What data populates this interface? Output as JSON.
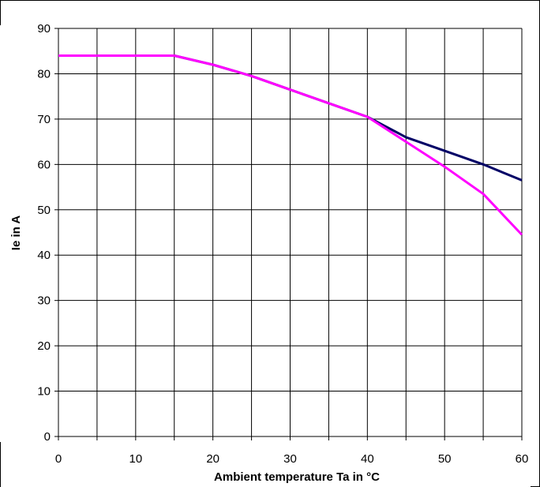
{
  "chart_data": {
    "type": "line",
    "title": "",
    "xlabel": "Ambient temperature Ta in °C",
    "ylabel": "Ie in A",
    "xlim": [
      0,
      60
    ],
    "ylim": [
      0,
      90
    ],
    "x_ticks": [
      0,
      10,
      20,
      30,
      40,
      50,
      60
    ],
    "y_ticks": [
      0,
      10,
      20,
      30,
      40,
      50,
      60,
      70,
      80,
      90
    ],
    "x_gridlines": [
      0,
      5,
      10,
      15,
      20,
      25,
      30,
      35,
      40,
      45,
      50,
      55,
      60
    ],
    "y_gridlines": [
      0,
      10,
      20,
      30,
      40,
      50,
      60,
      70,
      80,
      90
    ],
    "grid": true,
    "legend": "none",
    "series": [
      {
        "color": "#000066",
        "x": [
          0,
          15,
          20,
          25,
          30,
          35,
          40,
          45,
          50,
          55,
          60
        ],
        "y": [
          84,
          84,
          82,
          79.5,
          76.5,
          73.5,
          70.5,
          66,
          63,
          60,
          56.5
        ]
      },
      {
        "color": "#ff00ff",
        "x": [
          0,
          15,
          20,
          25,
          30,
          35,
          40,
          45,
          50,
          55,
          60
        ],
        "y": [
          84,
          84,
          82,
          79.5,
          76.5,
          73.5,
          70.5,
          65,
          59.5,
          53.5,
          44.5
        ]
      }
    ]
  }
}
